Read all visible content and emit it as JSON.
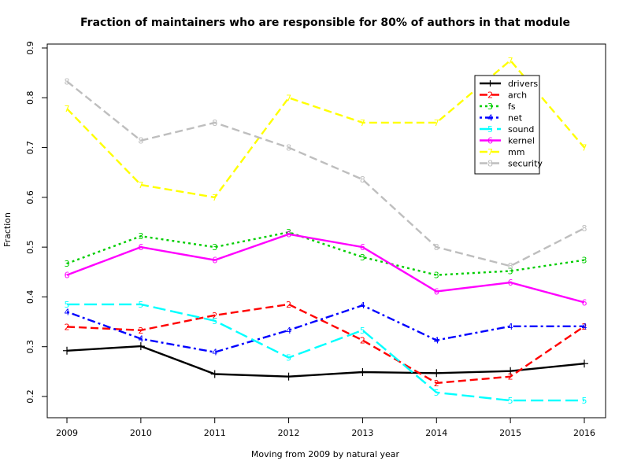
{
  "chart_data": {
    "type": "line",
    "title": "Fraction of maintainers who are responsible for 80% of authors in that module",
    "xlabel": "Moving from 2009 by natural year",
    "ylabel": "Fraction",
    "x": [
      2009,
      2010,
      2011,
      2012,
      2013,
      2014,
      2015,
      2016
    ],
    "xlim": [
      2009,
      2016
    ],
    "ylim": [
      0.2,
      0.9
    ],
    "yticks": [
      "0.2",
      "0.3",
      "0.4",
      "0.5",
      "0.6",
      "0.7",
      "0.8",
      "0.9"
    ],
    "xticks": [
      "2009",
      "2010",
      "2011",
      "2012",
      "2013",
      "2014",
      "2015",
      "2016"
    ],
    "grid": false,
    "legend_position": "top-right",
    "series": [
      {
        "name": "drivers",
        "marker": "1",
        "color": "#000000",
        "dash": "solid",
        "values": [
          0.292,
          0.301,
          0.245,
          0.24,
          0.249,
          0.247,
          0.251,
          0.266
        ]
      },
      {
        "name": "arch",
        "marker": "2",
        "color": "#ff0000",
        "dash": "dashed",
        "values": [
          0.34,
          0.333,
          0.363,
          0.385,
          0.313,
          0.227,
          0.24,
          0.341
        ]
      },
      {
        "name": "fs",
        "marker": "3",
        "color": "#00cd00",
        "dash": "dotted",
        "values": [
          0.467,
          0.522,
          0.5,
          0.53,
          0.48,
          0.444,
          0.452,
          0.474
        ]
      },
      {
        "name": "net",
        "marker": "4",
        "color": "#0000ff",
        "dash": "dotdash",
        "values": [
          0.37,
          0.316,
          0.289,
          0.333,
          0.383,
          0.313,
          0.341,
          0.341
        ]
      },
      {
        "name": "sound",
        "marker": "5",
        "color": "#00ffff",
        "dash": "longdash",
        "values": [
          0.385,
          0.385,
          0.352,
          0.278,
          0.333,
          0.208,
          0.192,
          0.192
        ]
      },
      {
        "name": "kernel",
        "marker": "6",
        "color": "#ff00ff",
        "dash": "solid",
        "values": [
          0.444,
          0.5,
          0.474,
          0.526,
          0.5,
          0.411,
          0.429,
          0.389
        ]
      },
      {
        "name": "mm",
        "marker": "7",
        "color": "#ffff00",
        "dash": "dashed",
        "values": [
          0.778,
          0.625,
          0.6,
          0.8,
          0.75,
          0.75,
          0.875,
          0.7
        ]
      },
      {
        "name": "security",
        "marker": "8",
        "color": "#bebebe",
        "dash": "dashed",
        "values": [
          0.833,
          0.714,
          0.75,
          0.7,
          0.636,
          0.5,
          0.462,
          0.538
        ]
      }
    ]
  }
}
